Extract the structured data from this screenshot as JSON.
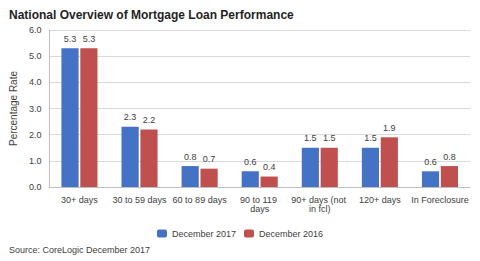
{
  "chart_data": {
    "type": "bar",
    "title": "National Overview of Mortgage Loan Performance",
    "source": "Source: CoreLogic December 2017",
    "y_label": "Percentage Rate",
    "categories": [
      "30+ days",
      "30 to 59 days",
      "60 to 89 days",
      "90 to 119 days",
      "90+ days (not in fcl)",
      "120+ days",
      "In Foreclosure"
    ],
    "series": [
      {
        "name": "December 2017",
        "color": "#4472c4",
        "values": [
          5.3,
          2.3,
          0.8,
          0.6,
          1.5,
          1.5,
          0.6
        ]
      },
      {
        "name": "December 2016",
        "color": "#c0504d",
        "values": [
          5.3,
          2.2,
          0.7,
          0.4,
          1.5,
          1.9,
          0.8
        ]
      }
    ],
    "ylim": [
      0,
      6
    ],
    "yticks": [
      {
        "value": 0,
        "label": "0.0"
      },
      {
        "value": 1,
        "label": "1.0"
      },
      {
        "value": 2,
        "label": "2.0"
      },
      {
        "value": 3,
        "label": "3.0"
      },
      {
        "value": 4,
        "label": "4.0"
      },
      {
        "value": 5,
        "label": "5.0"
      },
      {
        "value": 6,
        "label": "6.0"
      }
    ],
    "grid": true,
    "data_labels": true,
    "legend": "bottom"
  }
}
